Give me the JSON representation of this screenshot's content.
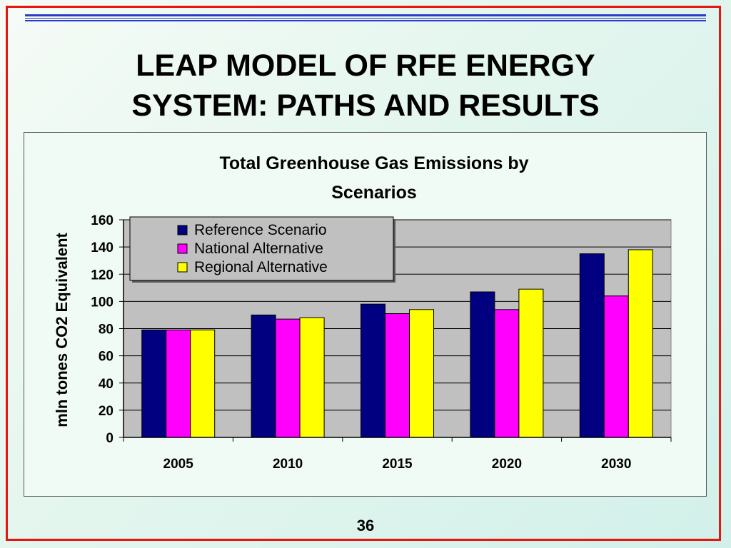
{
  "slide": {
    "title_line1": "LEAP MODEL OF RFE ENERGY",
    "title_line2": "SYSTEM: PATHS AND RESULTS",
    "page_number": "36"
  },
  "colors": {
    "border": "#e8150f",
    "reference": "#000080",
    "national": "#ff00ff",
    "regional": "#ffff00",
    "plot_background": "#c0c0c0"
  },
  "chart_data": {
    "type": "bar",
    "title": "Total Greenhouse Gas Emissions by Scenarios",
    "title_lines": [
      "Total Greenhouse Gas Emissions by",
      "Scenarios"
    ],
    "xlabel": "",
    "ylabel": "mln tones CO2 Equivalent",
    "categories": [
      "2005",
      "2010",
      "2015",
      "2020",
      "2030"
    ],
    "ylim": [
      0,
      160
    ],
    "yticks": [
      0,
      20,
      40,
      60,
      80,
      100,
      120,
      140,
      160
    ],
    "grid": true,
    "legend_position": "top-left",
    "series": [
      {
        "name": "Reference Scenario",
        "values": [
          79,
          90,
          98,
          107,
          135
        ]
      },
      {
        "name": "National Alternative",
        "values": [
          79,
          87,
          91,
          94,
          104
        ]
      },
      {
        "name": "Regional Alternative",
        "values": [
          79,
          88,
          94,
          109,
          138
        ]
      }
    ]
  }
}
